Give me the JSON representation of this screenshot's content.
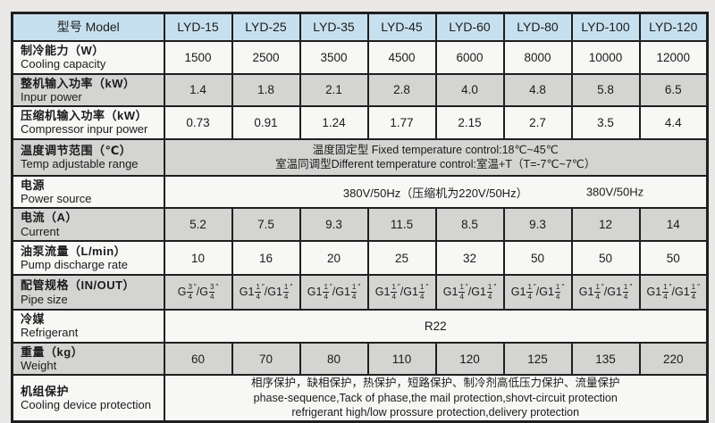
{
  "colors": {
    "page_bg": "#e9e8e6",
    "row_bg": "#f7f7f5",
    "shade_bg": "#d4d4d2",
    "header_bg": "#c7e0ef",
    "border": "#1f1f1f"
  },
  "table": {
    "inch_mark": "″",
    "header": {
      "label": "型号 Model",
      "models": [
        "LYD-15",
        "LYD-25",
        "LYD-35",
        "LYD-45",
        "LYD-60",
        "LYD-80",
        "LYD-100",
        "LYD-120"
      ]
    },
    "rows": [
      {
        "id": "cooling-capacity",
        "type": "values",
        "label_zh": "制冷能力（W）",
        "label_en": "Cooling capacity",
        "values": [
          "1500",
          "2500",
          "3500",
          "4500",
          "6000",
          "8000",
          "10000",
          "12000"
        ]
      },
      {
        "id": "input-power",
        "type": "values",
        "label_zh": "整机输入功率（kW）",
        "label_en": "Inpur power",
        "values": [
          "1.4",
          "1.8",
          "2.1",
          "2.8",
          "4.0",
          "4.8",
          "5.8",
          "6.5"
        ]
      },
      {
        "id": "compressor-input-power",
        "type": "values",
        "label_zh": "压缩机输入功率（kW）",
        "label_en": "Compressor inpur power",
        "values": [
          "0.73",
          "0.91",
          "1.24",
          "1.77",
          "2.15",
          "2.7",
          "3.5",
          "4.4"
        ]
      },
      {
        "id": "temp-adjustable-range",
        "type": "span",
        "label_zh": "温度调节范围（℃）",
        "label_en": "Temp adjustable range",
        "lines": [
          "温度固定型 Fixed temperature control:18℃~45℃",
          "室温同调型Different temperature control:室温+T（T=-7℃~7℃）"
        ]
      },
      {
        "id": "power-source",
        "type": "power",
        "label_zh": "电源",
        "label_en": "Power source",
        "main": "380V/50Hz（压缩机为220V/50Hz）",
        "right": "380V/50Hz"
      },
      {
        "id": "current",
        "type": "values",
        "label_zh": "电流（A）",
        "label_en": "Current",
        "values": [
          "5.2",
          "7.5",
          "9.3",
          "11.5",
          "8.5",
          "9.3",
          "12",
          "14"
        ]
      },
      {
        "id": "pump-discharge-rate",
        "type": "values",
        "label_zh": "油泵流量（L/min）",
        "label_en": "Pump discharge rate",
        "values": [
          "10",
          "16",
          "20",
          "25",
          "32",
          "50",
          "50",
          "50"
        ]
      },
      {
        "id": "pipe-size",
        "type": "pipe",
        "label_zh": "配管规格（IN/OUT）",
        "label_en": "Pipe size",
        "values": [
          {
            "in": {
              "pre": "G",
              "num": "3",
              "den": "4"
            },
            "out": {
              "pre": "G",
              "num": "3",
              "den": "4"
            }
          },
          {
            "in": {
              "pre": "G1",
              "num": "1",
              "den": "4"
            },
            "out": {
              "pre": "G1",
              "num": "1",
              "den": "4"
            }
          },
          {
            "in": {
              "pre": "G1",
              "num": "1",
              "den": "4"
            },
            "out": {
              "pre": "G1",
              "num": "1",
              "den": "4"
            }
          },
          {
            "in": {
              "pre": "G1",
              "num": "1",
              "den": "4"
            },
            "out": {
              "pre": "G1",
              "num": "1",
              "den": "4"
            }
          },
          {
            "in": {
              "pre": "G1",
              "num": "1",
              "den": "4"
            },
            "out": {
              "pre": "G1",
              "num": "1",
              "den": "4"
            }
          },
          {
            "in": {
              "pre": "G1",
              "num": "1",
              "den": "4"
            },
            "out": {
              "pre": "G1",
              "num": "1",
              "den": "4"
            }
          },
          {
            "in": {
              "pre": "G1",
              "num": "1",
              "den": "4"
            },
            "out": {
              "pre": "G1",
              "num": "1",
              "den": "4"
            }
          },
          {
            "in": {
              "pre": "G1",
              "num": "1",
              "den": "4"
            },
            "out": {
              "pre": "G1",
              "num": "1",
              "den": "4"
            }
          }
        ]
      },
      {
        "id": "refrigerant",
        "type": "span",
        "label_zh": "冷媒",
        "label_en": "Refrigerant",
        "lines": [
          "R22"
        ]
      },
      {
        "id": "weight",
        "type": "values",
        "label_zh": "重量（kg）",
        "label_en": "Weight",
        "values": [
          "60",
          "70",
          "80",
          "110",
          "120",
          "125",
          "135",
          "220"
        ]
      },
      {
        "id": "cooling-device-protection",
        "type": "span",
        "label_zh": "机组保护",
        "label_en": "Cooling device protection",
        "lines": [
          "相序保护，缺相保护，热保护，短路保护、制冷剂高低压力保护、流量保护",
          "phase-sequence,Tack of phase,the mail protection,shovt-circuit protection",
          "refrigerant high/low prossure protection,delivery protection"
        ]
      }
    ]
  }
}
